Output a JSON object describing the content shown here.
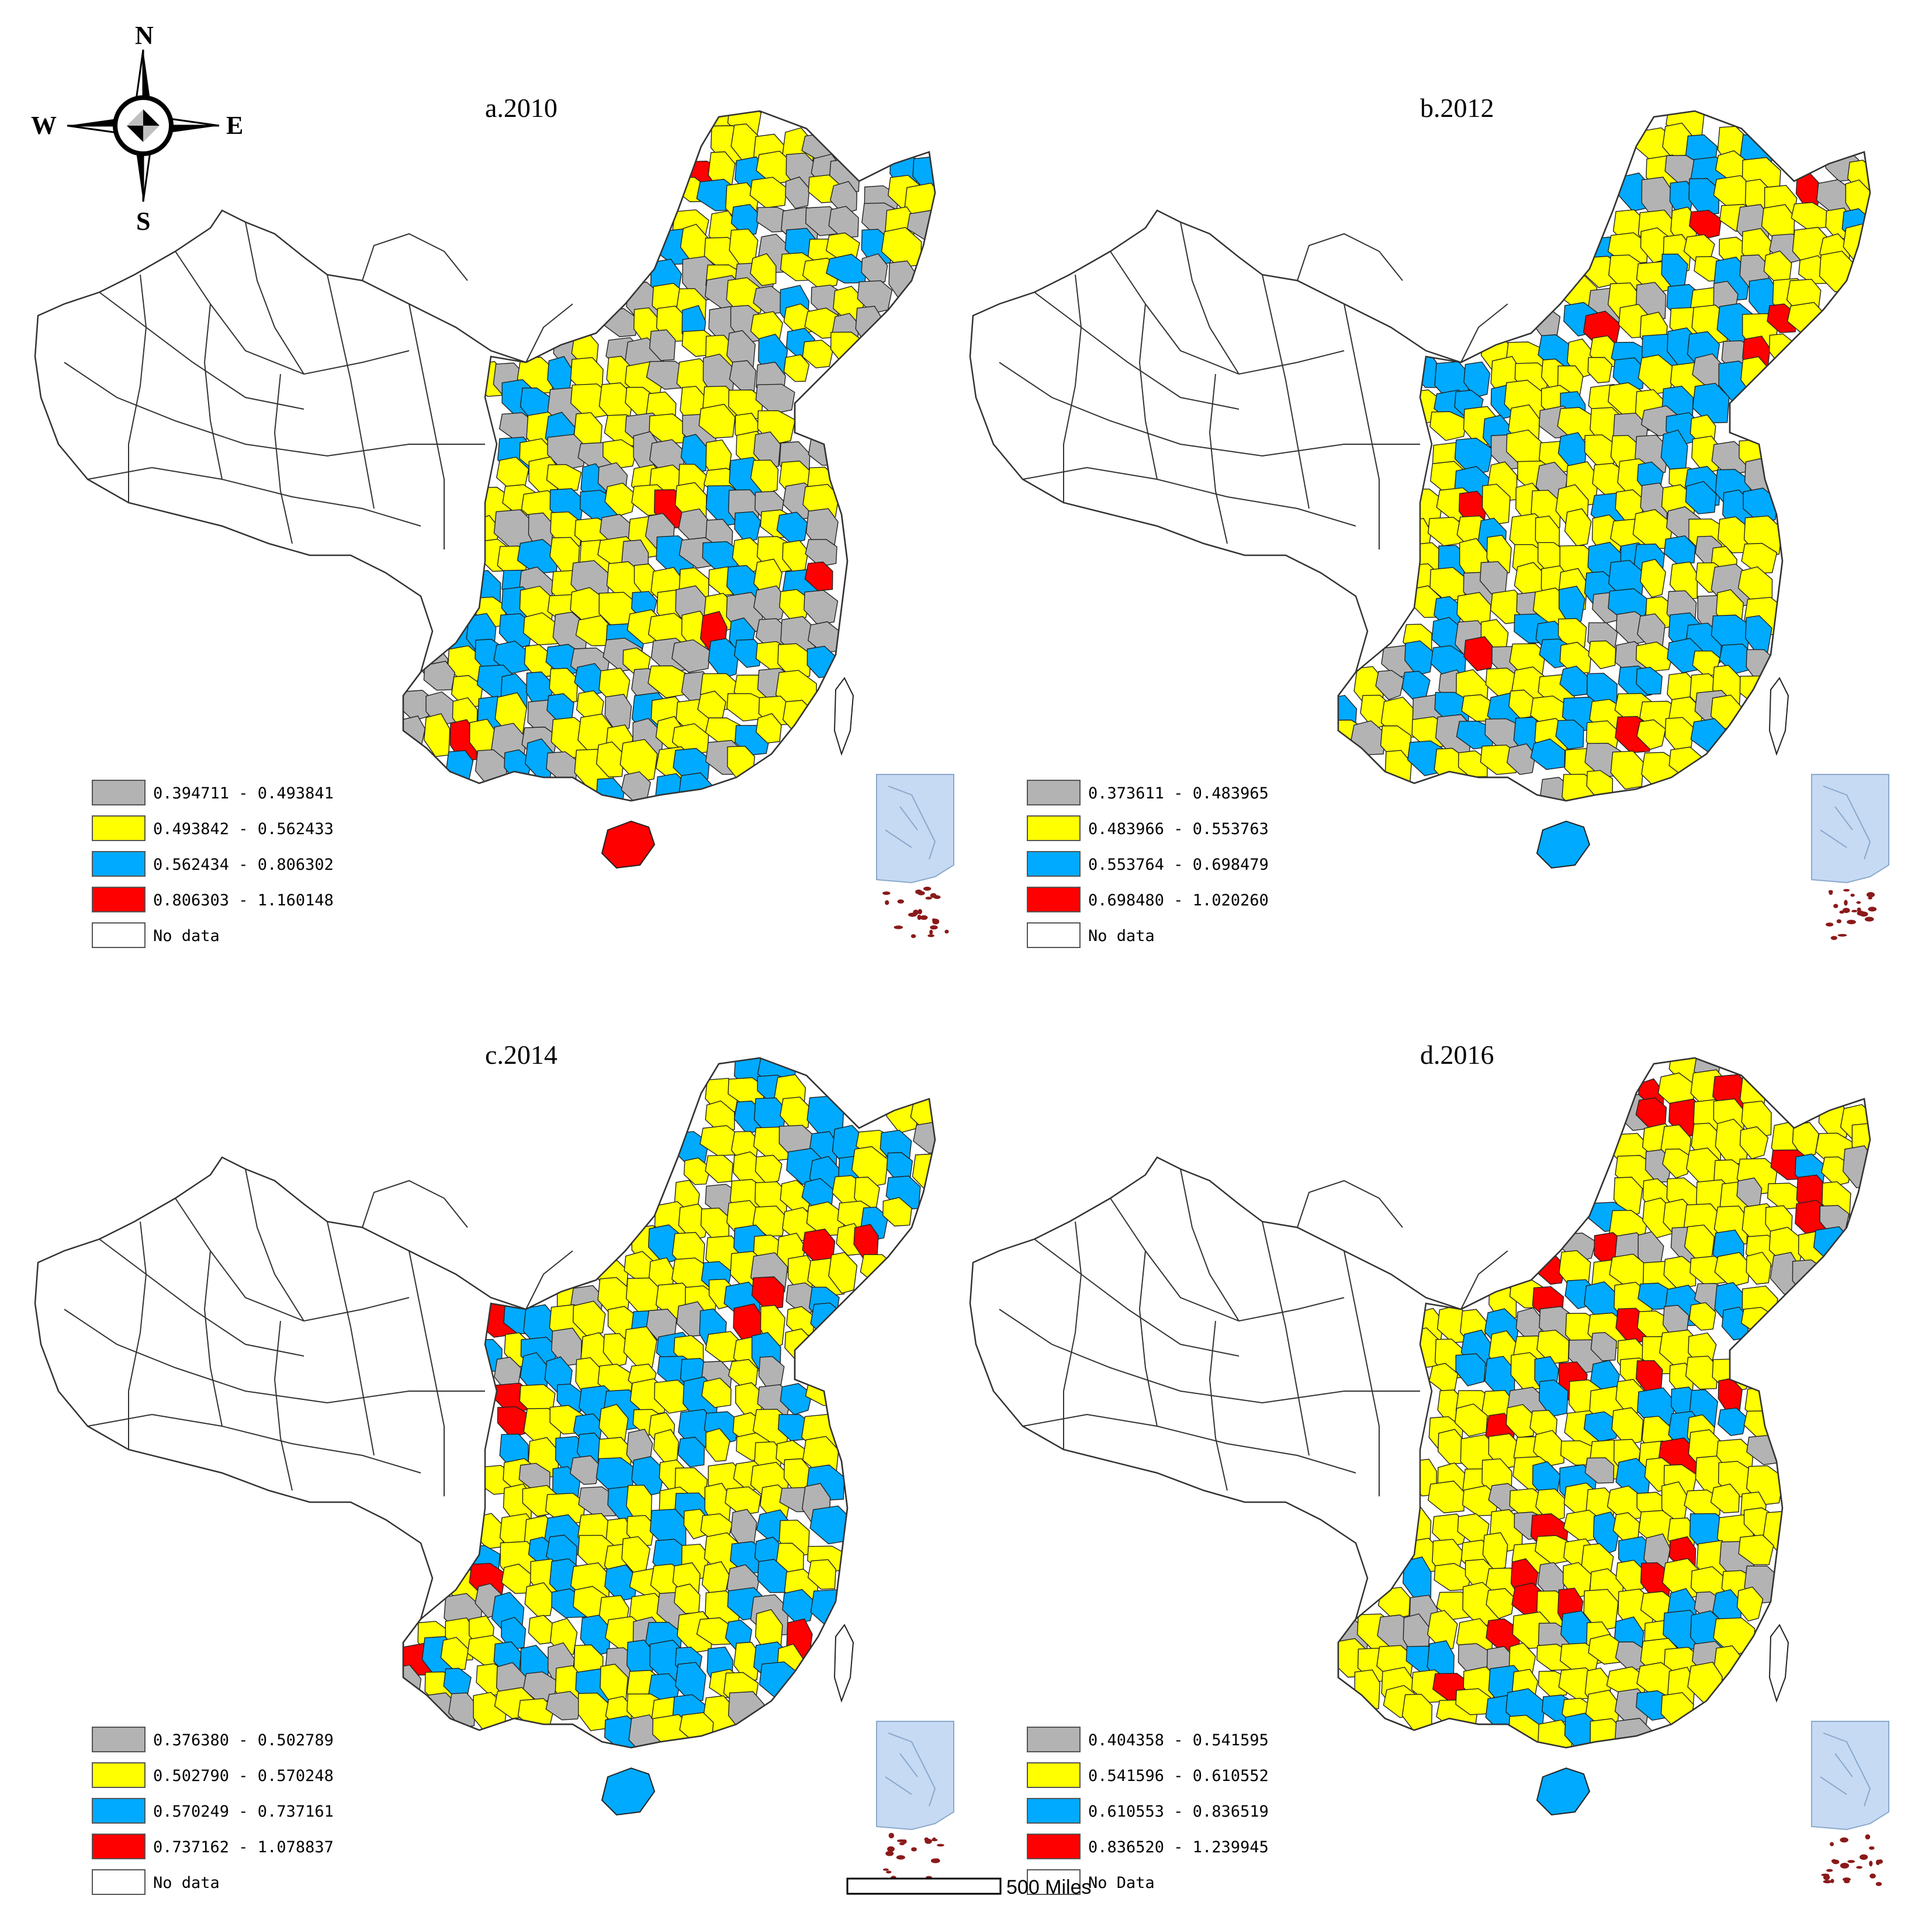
{
  "compass": {
    "n": "N",
    "s": "S",
    "e": "E",
    "w": "W"
  },
  "colors": {
    "class1": "#b3b3b3",
    "class2": "#ffff00",
    "class3": "#00aaff",
    "class4": "#ff0000",
    "nodata": "#ffffff",
    "boundary": "#333333",
    "inset_sea": "#c6daf3",
    "inset_islands": "#8b1a1a"
  },
  "panels": [
    {
      "title": "a.2010",
      "legend": [
        "0.394711 - 0.493841",
        "0.493842 - 0.562433",
        "0.562434 - 0.806302",
        "0.806303 - 1.160148",
        "No data"
      ]
    },
    {
      "title": "b.2012",
      "legend": [
        "0.373611 - 0.483965",
        "0.483966 - 0.553763",
        "0.553764 - 0.698479",
        "0.698480 - 1.020260",
        "No data"
      ]
    },
    {
      "title": "c.2014",
      "legend": [
        "0.376380 - 0.502789",
        "0.502790 - 0.570248",
        "0.570249 - 0.737161",
        "0.737162 - 1.078837",
        "No data"
      ]
    },
    {
      "title": "d.2016",
      "legend": [
        "0.404358 - 0.541595",
        "0.541596 - 0.610552",
        "0.610553 - 0.836519",
        "0.836520 - 1.239945",
        "No Data"
      ]
    }
  ],
  "scale_bar": {
    "label": "500 Miles"
  }
}
